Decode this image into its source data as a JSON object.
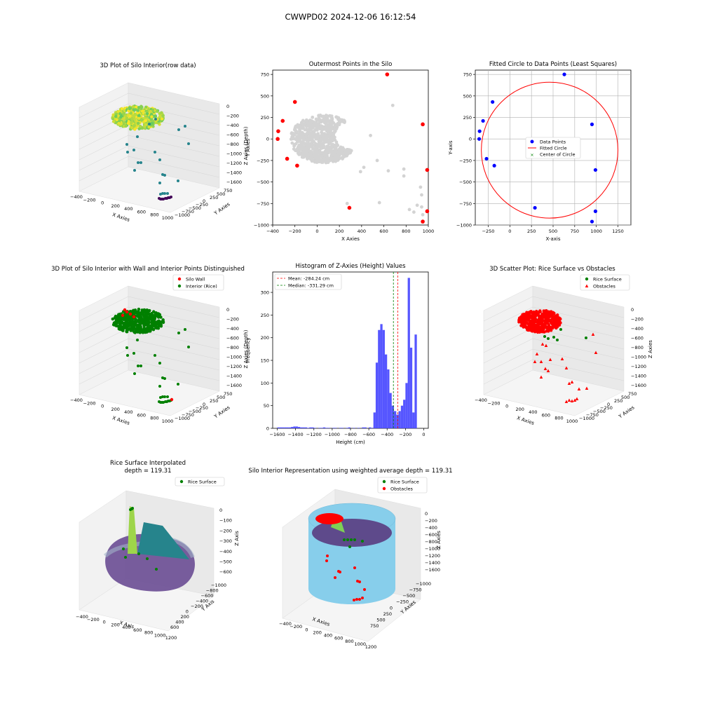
{
  "figure": {
    "suptitle": "CWWPD02 2024-12-06 16:12:54"
  },
  "colors": {
    "wall": "#ff0000",
    "rice": "#008000",
    "blue": "#0000ff",
    "gray": "#d3d3d3",
    "hist": "#4444ff",
    "silo": "#87ceeb"
  },
  "chart_data": [
    {
      "type": "scatter",
      "projection": "3d",
      "title": "3D Plot of Silo Interior(row data)",
      "xlabel": "X Axies",
      "ylabel": "Y Axies",
      "zlabel": "Z Axies (Depth)",
      "xticks": [
        "−400",
        "−200",
        "0",
        "200",
        "400",
        "600",
        "800",
        "1000"
      ],
      "yticks": [
        "−1000",
        "−750",
        "−500",
        "−250",
        "0",
        "250",
        "500",
        "750"
      ],
      "zticks": [
        "0",
        "−200",
        "−400",
        "−600",
        "−800",
        "−1000",
        "−1200",
        "−1400",
        "−1600"
      ],
      "colormap": "viridis"
    },
    {
      "type": "scatter",
      "title": "Outermost Points in the Silo",
      "xlabel": "X Axies",
      "ylabel": "Y Axies",
      "xlim": [
        -400,
        1000
      ],
      "ylim": [
        -1000,
        800
      ],
      "xticks": [
        "−400",
        "−200",
        "0",
        "200",
        "400",
        "600",
        "800",
        "1000"
      ],
      "yticks": [
        "−1000",
        "−750",
        "−500",
        "−250",
        "0",
        "250",
        "500",
        "750"
      ],
      "outer_points": [
        [
          -350,
          90
        ],
        [
          -355,
          0
        ],
        [
          -310,
          210
        ],
        [
          -200,
          430
        ],
        [
          -180,
          -310
        ],
        [
          -270,
          -230
        ],
        [
          290,
          -800
        ],
        [
          630,
          750
        ],
        [
          950,
          170
        ],
        [
          990,
          -360
        ],
        [
          950,
          -960
        ],
        [
          990,
          -840
        ]
      ],
      "scatter_points": [
        [
          680,
          390
        ],
        [
          480,
          40
        ],
        [
          540,
          -250
        ],
        [
          420,
          -330
        ],
        [
          390,
          -380
        ],
        [
          640,
          -370
        ],
        [
          780,
          -350
        ],
        [
          780,
          -430
        ],
        [
          930,
          -560
        ],
        [
          940,
          -650
        ],
        [
          900,
          -770
        ],
        [
          940,
          -790
        ],
        [
          830,
          -820
        ],
        [
          870,
          -850
        ],
        [
          560,
          -740
        ],
        [
          270,
          -750
        ],
        [
          950,
          -880
        ]
      ]
    },
    {
      "type": "scatter",
      "title": "Fitted Circle to Data Points (Least Squares)",
      "xlabel": "X-axis",
      "ylabel": "Y-axis",
      "xlim": [
        -400,
        1400
      ],
      "ylim": [
        -1000,
        800
      ],
      "xticks": [
        "−250",
        "0",
        "250",
        "500",
        "750",
        "1000",
        "1250"
      ],
      "yticks": [
        "−1000",
        "−750",
        "−500",
        "−250",
        "0",
        "250",
        "500",
        "750"
      ],
      "points": [
        [
          -350,
          90
        ],
        [
          -355,
          0
        ],
        [
          -310,
          210
        ],
        [
          -200,
          430
        ],
        [
          -180,
          -310
        ],
        [
          -270,
          -230
        ],
        [
          290,
          -800
        ],
        [
          630,
          750
        ],
        [
          950,
          170
        ],
        [
          990,
          -360
        ],
        [
          950,
          -960
        ],
        [
          990,
          -840
        ]
      ],
      "circle": {
        "cx": 460,
        "cy": -130,
        "r": 790
      },
      "legend": [
        "Data Points",
        "Fitted Circle",
        "Center of Circle"
      ]
    },
    {
      "type": "scatter",
      "projection": "3d",
      "title": "3D Plot of Silo Interior with Wall and Interior Points Distinguished",
      "xlabel": "X Axies",
      "ylabel": "Y Axies",
      "zlabel": "Z Axies (Depth)",
      "xticks": [
        "−400",
        "−200",
        "0",
        "200",
        "400",
        "600",
        "800",
        "1000"
      ],
      "yticks": [
        "−1000",
        "−750",
        "−500",
        "−250",
        "0",
        "250",
        "500",
        "750"
      ],
      "zticks": [
        "0",
        "−200",
        "−400",
        "−600",
        "−800",
        "−1000",
        "−1200",
        "−1400",
        "−1600"
      ],
      "legend": [
        "Silo Wall",
        "Interior (Rice)"
      ]
    },
    {
      "type": "bar",
      "title": "Histogram of Z-Axies (Height) Values",
      "xlabel": "Height (cm)",
      "ylabel": "Frequency",
      "xlim": [
        -1650,
        50
      ],
      "ylim": [
        0,
        345
      ],
      "xticks": [
        "−1600",
        "−1400",
        "−1200",
        "−1000",
        "−800",
        "−600",
        "−400",
        "−200",
        "0"
      ],
      "yticks": [
        "0",
        "50",
        "100",
        "150",
        "200",
        "250",
        "300"
      ],
      "bins": [
        [
          -1600,
          2
        ],
        [
          -1575,
          2
        ],
        [
          -1550,
          2
        ],
        [
          -1525,
          2
        ],
        [
          -1500,
          2
        ],
        [
          -1475,
          2
        ],
        [
          -1450,
          3
        ],
        [
          -1425,
          4
        ],
        [
          -1400,
          4
        ],
        [
          -1375,
          3
        ],
        [
          -1350,
          2
        ],
        [
          -1325,
          2
        ],
        [
          -1300,
          2
        ],
        [
          -1275,
          1
        ],
        [
          -1250,
          2
        ],
        [
          -1225,
          2
        ],
        [
          -1200,
          1
        ],
        [
          -1150,
          1
        ],
        [
          -1125,
          1
        ],
        [
          -1100,
          2
        ],
        [
          -1075,
          1
        ],
        [
          -1050,
          1
        ],
        [
          -1000,
          1
        ],
        [
          -975,
          1
        ],
        [
          -925,
          1
        ],
        [
          -900,
          1
        ],
        [
          -850,
          1
        ],
        [
          -825,
          2
        ],
        [
          -775,
          1
        ],
        [
          -725,
          1
        ],
        [
          -675,
          2
        ],
        [
          -650,
          2
        ],
        [
          -600,
          2
        ],
        [
          -575,
          1
        ],
        [
          -550,
          35
        ],
        [
          -525,
          145
        ],
        [
          -500,
          217
        ],
        [
          -475,
          230
        ],
        [
          -450,
          217
        ],
        [
          -425,
          163
        ],
        [
          -400,
          130
        ],
        [
          -375,
          78
        ],
        [
          -350,
          50
        ],
        [
          -325,
          38
        ],
        [
          -300,
          30
        ],
        [
          -275,
          38
        ],
        [
          -250,
          50
        ],
        [
          -225,
          63
        ],
        [
          -200,
          100
        ],
        [
          -175,
          332
        ],
        [
          -150,
          178
        ],
        [
          -125,
          35
        ],
        [
          -100,
          207
        ]
      ],
      "binwidth": 25,
      "mean": -284.24,
      "median": -331.29,
      "legend": [
        "Mean: -284.24 cm",
        "Median: -331.29 cm"
      ]
    },
    {
      "type": "scatter",
      "projection": "3d",
      "title": "3D Scatter Plot: Rice Surface vs Obstacles",
      "xlabel": "X Axies",
      "ylabel": "Y Axies",
      "zlabel": "Z Axies",
      "xticks": [
        "−400",
        "−200",
        "0",
        "200",
        "400",
        "600",
        "800",
        "1000"
      ],
      "yticks": [
        "−1000",
        "−750",
        "−500",
        "−250",
        "0",
        "250",
        "500",
        "750"
      ],
      "zticks": [
        "0",
        "−200",
        "−400",
        "−600",
        "−800",
        "−1000",
        "−1200",
        "−1400",
        "−1600"
      ],
      "legend": [
        "Rice Surface",
        "Obstacles"
      ]
    },
    {
      "type": "area",
      "projection": "3d",
      "title": "Rice Surface Interpolated",
      "subtitle": "depth = 119.31",
      "xlabel": "X Axis",
      "ylabel": "Y Axis",
      "zlabel": "Z Axis",
      "xticks": [
        "−400",
        "−200",
        "0",
        "200",
        "400",
        "600",
        "800",
        "1000",
        "1200"
      ],
      "yticks": [
        "−1000",
        "−800",
        "−600",
        "−400",
        "−200",
        "0",
        "200",
        "400",
        "600"
      ],
      "zticks": [
        "0",
        "−100",
        "−200",
        "−300",
        "−400",
        "−500",
        "−600"
      ],
      "legend": [
        "Rice Surface"
      ]
    },
    {
      "type": "area",
      "projection": "3d",
      "title": "Silo Interior Representation using weighted average depth = 119.31",
      "xlabel": "X Axies",
      "ylabel": "Y Axies",
      "zlabel": "Z Axies",
      "xticks": [
        "−400",
        "−200",
        "0",
        "200",
        "400",
        "600",
        "800",
        "1000",
        "1200"
      ],
      "yticks": [
        "−1000",
        "−750",
        "−500",
        "−250",
        "0",
        "250",
        "500",
        "750"
      ],
      "zticks": [
        "0",
        "−200",
        "−400",
        "−600",
        "−800",
        "−1000",
        "−1200",
        "−1400",
        "−1600"
      ],
      "legend": [
        "Rice Surface",
        "Obstacles"
      ]
    }
  ]
}
